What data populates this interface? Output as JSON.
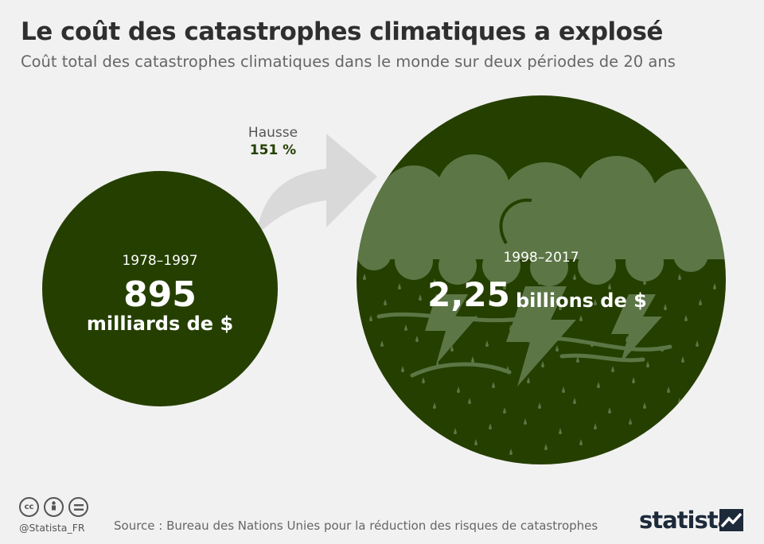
{
  "header": {
    "title": "Le coût des catastrophes climatiques a explosé",
    "subtitle": "Coût total des catastrophes climatiques dans le monde sur deux périodes de 20 ans"
  },
  "arrow": {
    "label": "Hausse",
    "value": "151 %"
  },
  "chart_data": {
    "type": "bubble",
    "categories": [
      "1978–1997",
      "1998–2017"
    ],
    "values": [
      895,
      2250
    ],
    "value_unit": "milliards de $",
    "items": [
      {
        "period": "1978–1997",
        "value_text": "895",
        "unit_text": "milliards de $"
      },
      {
        "period": "1998–2017",
        "value_text": "2,25",
        "unit_text": "billions de $"
      }
    ],
    "increase_percent": 151
  },
  "colors": {
    "dark_green": "#253f00",
    "cloud_green": "#5c7646",
    "arrow_grey": "#d9d9d9",
    "background": "#f1f1f1"
  },
  "footer": {
    "handle": "@Statista_FR",
    "source": "Source : Bureau des Nations Unies pour la réduction des risques de catastrophes",
    "brand": "statista",
    "license_icons": [
      "cc-icon",
      "by-icon",
      "nd-icon"
    ]
  }
}
